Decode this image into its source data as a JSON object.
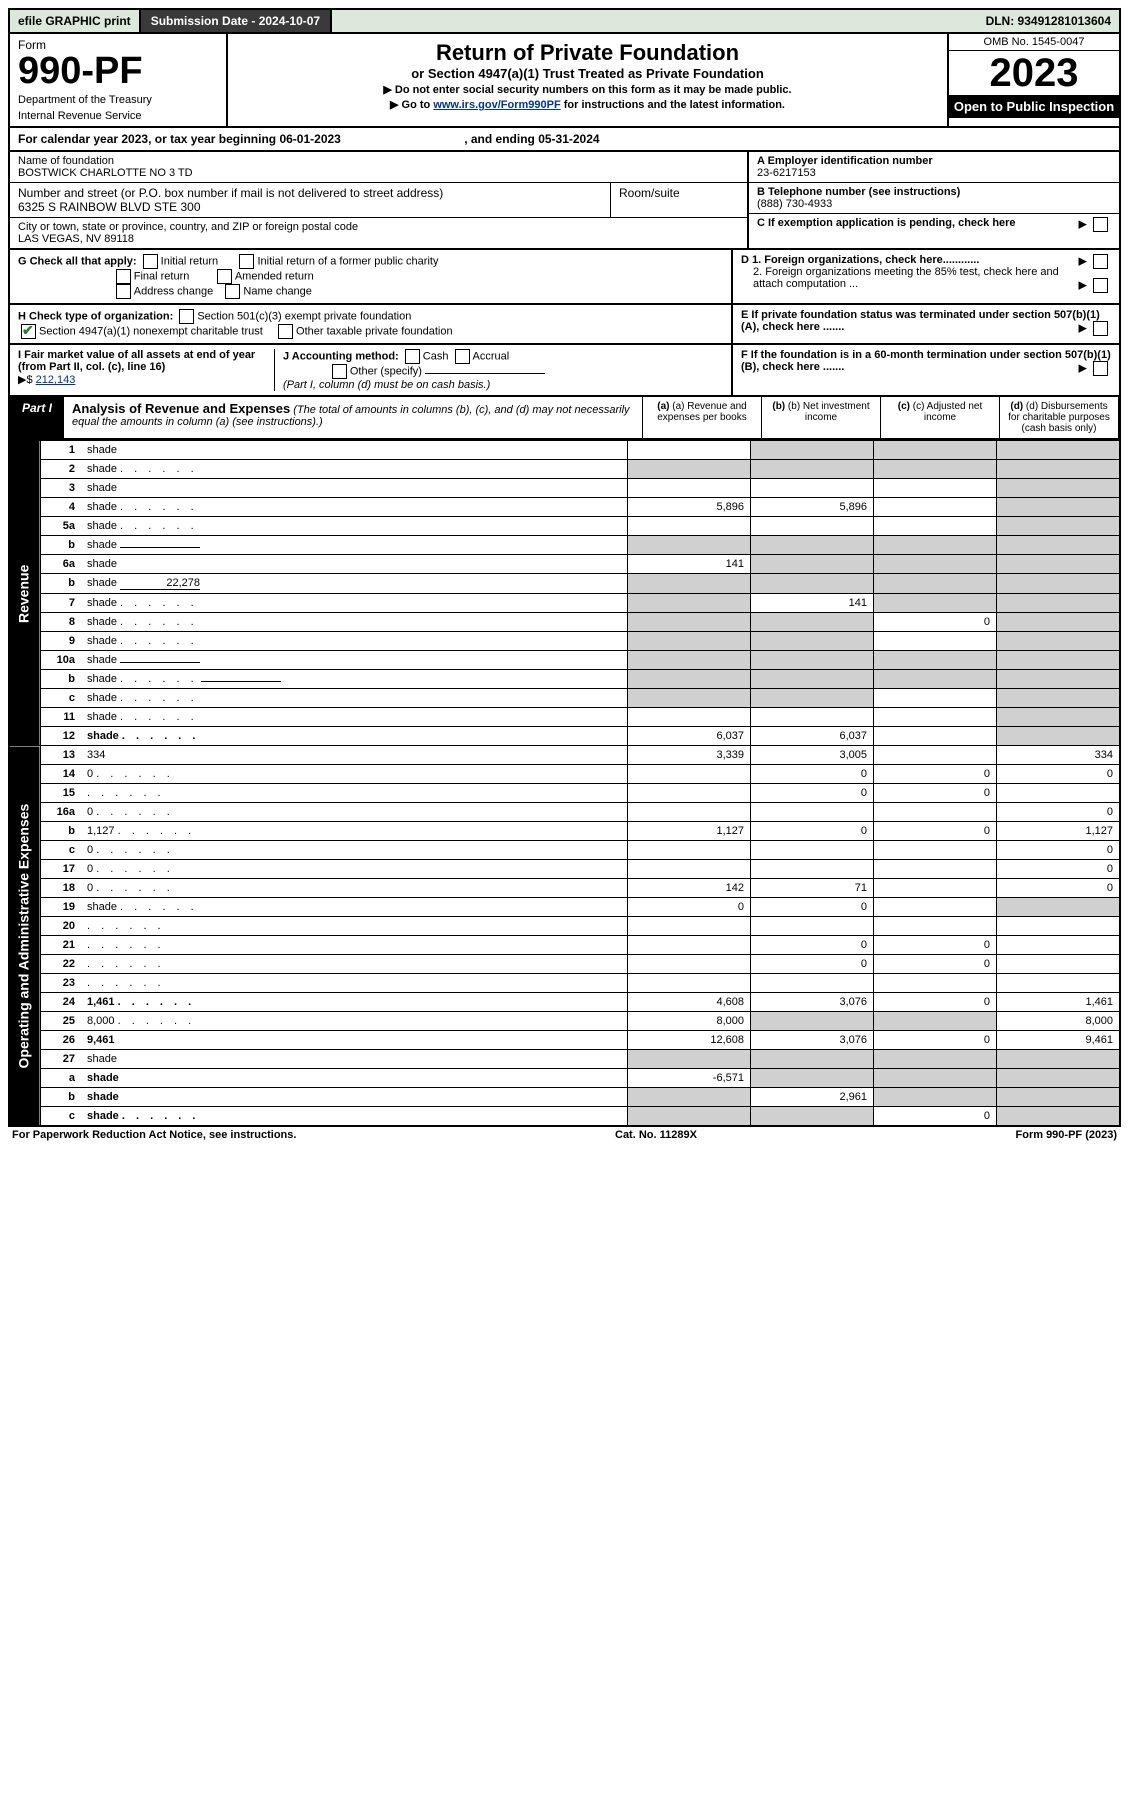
{
  "topbar": {
    "efile": "efile GRAPHIC print",
    "submission_label": "Submission Date - 2024-10-07",
    "dln": "DLN: 93491281013604"
  },
  "header": {
    "form_word": "Form",
    "form_no": "990-PF",
    "dept": "Department of the Treasury",
    "irs": "Internal Revenue Service",
    "title": "Return of Private Foundation",
    "subtitle": "or Section 4947(a)(1) Trust Treated as Private Foundation",
    "note1": "▶ Do not enter social security numbers on this form as it may be made public.",
    "note2_pre": "▶ Go to ",
    "note2_link": "www.irs.gov/Form990PF",
    "note2_post": " for instructions and the latest information.",
    "omb": "OMB No. 1545-0047",
    "year": "2023",
    "open": "Open to Public Inspection"
  },
  "calendar": {
    "text_pre": "For calendar year 2023, or tax year beginning ",
    "begin": "06-01-2023",
    "text_mid": " , and ending ",
    "end": "05-31-2024"
  },
  "info": {
    "name_label": "Name of foundation",
    "name": "BOSTWICK CHARLOTTE NO 3 TD",
    "addr_label": "Number and street (or P.O. box number if mail is not delivered to street address)",
    "addr": "6325 S RAINBOW BLVD STE 300",
    "room_label": "Room/suite",
    "city_label": "City or town, state or province, country, and ZIP or foreign postal code",
    "city": "LAS VEGAS, NV  89118",
    "ein_label": "A Employer identification number",
    "ein": "23-6217153",
    "tel_label": "B Telephone number (see instructions)",
    "tel": "(888) 730-4933",
    "c_label": "C If exemption application is pending, check here",
    "d1": "D 1. Foreign organizations, check here............",
    "d2": "2. Foreign organizations meeting the 85% test, check here and attach computation ...",
    "e": "E If private foundation status was terminated under section 507(b)(1)(A), check here .......",
    "f": "F If the foundation is in a 60-month termination under section 507(b)(1)(B), check here .......",
    "g_label": "G Check all that apply:",
    "g_opts": [
      "Initial return",
      "Initial return of a former public charity",
      "Final return",
      "Amended return",
      "Address change",
      "Name change"
    ],
    "h_label": "H Check type of organization:",
    "h_opt1": "Section 501(c)(3) exempt private foundation",
    "h_opt2": "Section 4947(a)(1) nonexempt charitable trust",
    "h_opt3": "Other taxable private foundation",
    "i_label": "I Fair market value of all assets at end of year (from Part II, col. (c), line 16)",
    "i_amount_prefix": "▶$ ",
    "i_amount": "212,143",
    "j_label": "J Accounting method:",
    "j_cash": "Cash",
    "j_accrual": "Accrual",
    "j_other": "Other (specify)",
    "j_note": "(Part I, column (d) must be on cash basis.)"
  },
  "part1": {
    "tab": "Part I",
    "title": "Analysis of Revenue and Expenses",
    "note": "(The total of amounts in columns (b), (c), and (d) may not necessarily equal the amounts in column (a) (see instructions).)",
    "col_a": "(a) Revenue and expenses per books",
    "col_b": "(b) Net investment income",
    "col_c": "(c) Adjusted net income",
    "col_d": "(d) Disbursements for charitable purposes (cash basis only)",
    "side_rev": "Revenue",
    "side_exp": "Operating and Administrative Expenses"
  },
  "rows": [
    {
      "n": "1",
      "d": "shade",
      "a": "",
      "b": "shade",
      "c": "shade"
    },
    {
      "n": "2",
      "d": "shade",
      "dots": true,
      "a": "shade",
      "b": "shade",
      "c": "shade"
    },
    {
      "n": "3",
      "d": "shade",
      "a": "",
      "b": "",
      "c": ""
    },
    {
      "n": "4",
      "d": "shade",
      "dots": true,
      "a": "5,896",
      "b": "5,896",
      "c": ""
    },
    {
      "n": "5a",
      "d": "shade",
      "dots": true,
      "a": "",
      "b": "",
      "c": ""
    },
    {
      "n": "b",
      "d": "shade",
      "inline": true,
      "a": "shade",
      "b": "shade",
      "c": "shade"
    },
    {
      "n": "6a",
      "d": "shade",
      "a": "141",
      "b": "shade",
      "c": "shade"
    },
    {
      "n": "b",
      "d": "shade",
      "inline": true,
      "inline_val": "22,278",
      "a": "shade",
      "b": "shade",
      "c": "shade"
    },
    {
      "n": "7",
      "d": "shade",
      "dots": true,
      "a": "shade",
      "b": "141",
      "c": "shade"
    },
    {
      "n": "8",
      "d": "shade",
      "dots": true,
      "a": "shade",
      "b": "shade",
      "c": "0"
    },
    {
      "n": "9",
      "d": "shade",
      "dots": true,
      "a": "shade",
      "b": "shade",
      "c": ""
    },
    {
      "n": "10a",
      "d": "shade",
      "inline": true,
      "a": "shade",
      "b": "shade",
      "c": "shade"
    },
    {
      "n": "b",
      "d": "shade",
      "dots": true,
      "inline": true,
      "a": "shade",
      "b": "shade",
      "c": "shade"
    },
    {
      "n": "c",
      "d": "shade",
      "dots": true,
      "a": "shade",
      "b": "shade",
      "c": ""
    },
    {
      "n": "11",
      "d": "shade",
      "dots": true,
      "a": "",
      "b": "",
      "c": ""
    },
    {
      "n": "12",
      "d": "shade",
      "dots": true,
      "bold": true,
      "a": "6,037",
      "b": "6,037",
      "c": ""
    },
    {
      "n": "13",
      "d": "334",
      "a": "3,339",
      "b": "3,005",
      "c": ""
    },
    {
      "n": "14",
      "d": "0",
      "dots": true,
      "a": "",
      "b": "0",
      "c": "0"
    },
    {
      "n": "15",
      "d": "",
      "dots": true,
      "a": "",
      "b": "0",
      "c": "0"
    },
    {
      "n": "16a",
      "d": "0",
      "dots": true,
      "a": "",
      "b": "",
      "c": ""
    },
    {
      "n": "b",
      "d": "1,127",
      "dots": true,
      "a": "1,127",
      "b": "0",
      "c": "0"
    },
    {
      "n": "c",
      "d": "0",
      "dots": true,
      "a": "",
      "b": "",
      "c": ""
    },
    {
      "n": "17",
      "d": "0",
      "dots": true,
      "a": "",
      "b": "",
      "c": ""
    },
    {
      "n": "18",
      "d": "0",
      "dots": true,
      "a": "142",
      "b": "71",
      "c": ""
    },
    {
      "n": "19",
      "d": "shade",
      "dots": true,
      "a": "0",
      "b": "0",
      "c": ""
    },
    {
      "n": "20",
      "d": "",
      "dots": true,
      "a": "",
      "b": "",
      "c": ""
    },
    {
      "n": "21",
      "d": "",
      "dots": true,
      "a": "",
      "b": "0",
      "c": "0"
    },
    {
      "n": "22",
      "d": "",
      "dots": true,
      "a": "",
      "b": "0",
      "c": "0"
    },
    {
      "n": "23",
      "d": "",
      "dots": true,
      "a": "",
      "b": "",
      "c": ""
    },
    {
      "n": "24",
      "d": "1,461",
      "dots": true,
      "bold": true,
      "a": "4,608",
      "b": "3,076",
      "c": "0"
    },
    {
      "n": "25",
      "d": "8,000",
      "dots": true,
      "a": "8,000",
      "b": "shade",
      "c": "shade"
    },
    {
      "n": "26",
      "d": "9,461",
      "bold": true,
      "a": "12,608",
      "b": "3,076",
      "c": "0"
    },
    {
      "n": "27",
      "d": "shade",
      "a": "shade",
      "b": "shade",
      "c": "shade"
    },
    {
      "n": "a",
      "d": "shade",
      "bold": true,
      "a": "-6,571",
      "b": "shade",
      "c": "shade"
    },
    {
      "n": "b",
      "d": "shade",
      "bold": true,
      "a": "shade",
      "b": "2,961",
      "c": "shade"
    },
    {
      "n": "c",
      "d": "shade",
      "dots": true,
      "bold": true,
      "a": "shade",
      "b": "shade",
      "c": "0"
    }
  ],
  "footer": {
    "left": "For Paperwork Reduction Act Notice, see instructions.",
    "mid": "Cat. No. 11289X",
    "right": "Form 990-PF (2023)"
  }
}
